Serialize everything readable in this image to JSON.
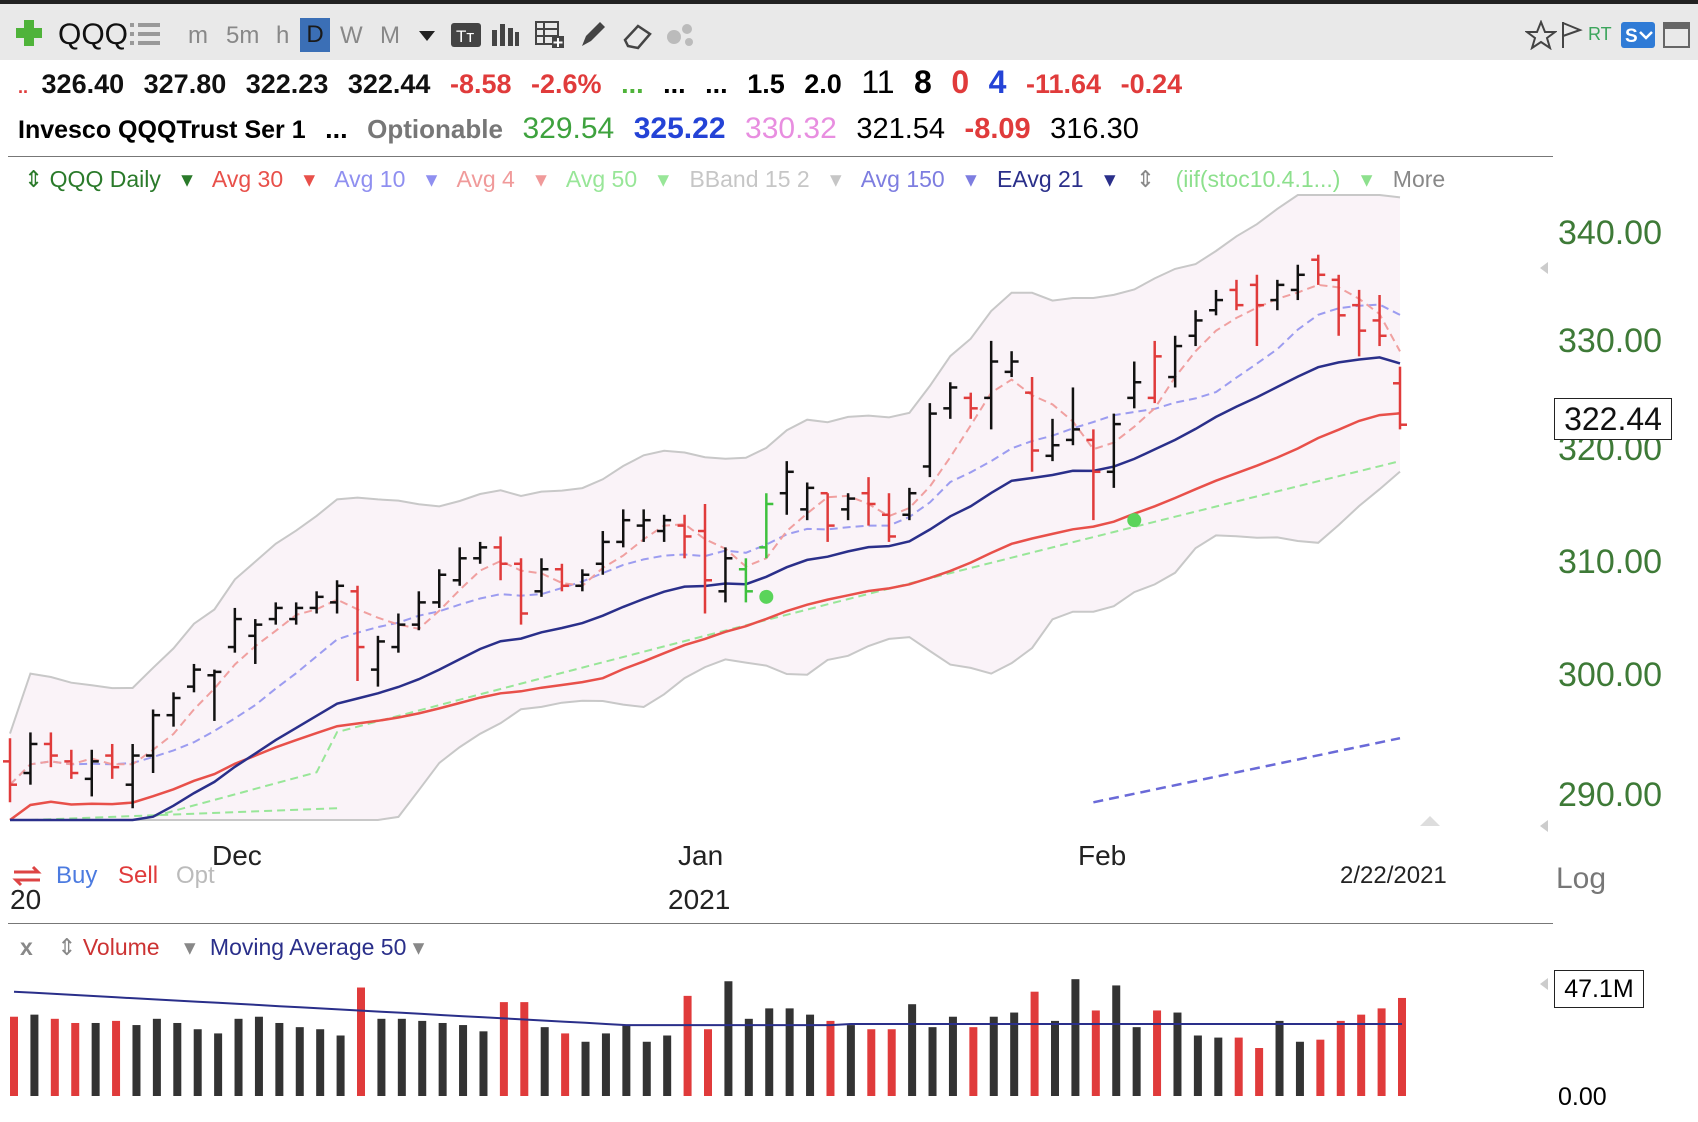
{
  "toolbar": {
    "symbol": "QQQ",
    "intervals": [
      "m",
      "5m",
      "h",
      "D",
      "W",
      "M"
    ],
    "active_interval": "D",
    "rt_label": "RT"
  },
  "quote": {
    "open": "326.40",
    "high": "327.80",
    "low": "322.23",
    "close": "322.44",
    "change": "-8.58",
    "change_pct": "-2.6%",
    "dots1": "...",
    "dots2": "...",
    "dots3": "...",
    "v1": "1.5",
    "v2": "2.0",
    "r1": "11",
    "r2": "8",
    "r3": "0",
    "r4": "4",
    "r5": "-11.64",
    "r6": "-0.24",
    "lead_dots": "..",
    "name": "Invesco QQQTrust Ser 1",
    "name_dots": "...",
    "optionable": "Optionable",
    "p1": "329.54",
    "p2": "325.22",
    "p3": "330.32",
    "p4": "321.54",
    "p5": "-8.09",
    "p6": "316.30"
  },
  "legend": {
    "series": "QQQ Daily",
    "avg30": "Avg 30",
    "avg10": "Avg 10",
    "avg4": "Avg 4",
    "avg50": "Avg 50",
    "bband": "BBand 15 2",
    "avg150": "Avg 150",
    "eavg21": "EAvg 21",
    "iif": "(iif(stoc10.4.1...)",
    "more": "More"
  },
  "axis": {
    "y_labels": [
      "340.00",
      "330.00",
      "320.00",
      "310.00",
      "300.00",
      "290.00"
    ],
    "last_price": "322.44",
    "x_labels": [
      "Dec",
      "Jan",
      "Feb"
    ],
    "year": "2021",
    "date": "2/22/2021",
    "log": "Log",
    "buy": "Buy",
    "sell": "Sell",
    "opt": "Opt",
    "left_fragment": "20"
  },
  "volume": {
    "close_x": "x",
    "label": "Volume",
    "ma_label": "Moving Average 50",
    "last": "47.1M",
    "zero": "0.00"
  },
  "colors": {
    "up": "#111111",
    "down": "#e03b3b",
    "green_bar": "#3ec13e",
    "avg30": "#e8504a",
    "eavg21": "#2a2f8a",
    "avg10": "#9c9cf0",
    "avg4": "#f0a0a0",
    "avg50": "#98e698",
    "avg150": "#6a6ad8",
    "band": "#c8c8c8",
    "axis_text": "#3e7a37"
  },
  "chart_data": {
    "type": "ohlc",
    "scale": "log",
    "ylim": [
      287,
      344
    ],
    "bars": [
      {
        "h": 294.0,
        "l": 288.5,
        "o": 292.0,
        "c": 290.0,
        "d": 1
      },
      {
        "h": 294.5,
        "l": 290.0,
        "o": 291.0,
        "c": 293.5,
        "d": 0
      },
      {
        "h": 294.5,
        "l": 291.5,
        "o": 293.5,
        "c": 292.5,
        "d": 1
      },
      {
        "h": 293.0,
        "l": 290.5,
        "o": 292.0,
        "c": 291.0,
        "d": 1
      },
      {
        "h": 293.0,
        "l": 289.0,
        "o": 290.5,
        "c": 292.0,
        "d": 0
      },
      {
        "h": 293.5,
        "l": 290.5,
        "o": 292.5,
        "c": 291.5,
        "d": 1
      },
      {
        "h": 293.5,
        "l": 288.0,
        "o": 290.0,
        "c": 292.5,
        "d": 0
      },
      {
        "h": 296.5,
        "l": 291.0,
        "o": 292.5,
        "c": 296.0,
        "d": 0
      },
      {
        "h": 298.0,
        "l": 295.0,
        "o": 296.0,
        "c": 297.5,
        "d": 0
      },
      {
        "h": 300.5,
        "l": 298.0,
        "o": 298.5,
        "c": 300.0,
        "d": 0
      },
      {
        "h": 300.0,
        "l": 295.5,
        "o": 299.5,
        "c": 299.8,
        "d": 0
      },
      {
        "h": 305.5,
        "l": 301.5,
        "o": 302.0,
        "c": 304.5,
        "d": 0
      },
      {
        "h": 304.5,
        "l": 300.5,
        "o": 303.0,
        "c": 304.0,
        "d": 0
      },
      {
        "h": 306.0,
        "l": 304.0,
        "o": 304.5,
        "c": 305.5,
        "d": 0
      },
      {
        "h": 306.0,
        "l": 304.0,
        "o": 304.5,
        "c": 305.5,
        "d": 0
      },
      {
        "h": 307.0,
        "l": 305.0,
        "o": 305.5,
        "c": 306.5,
        "d": 0
      },
      {
        "h": 308.0,
        "l": 305.0,
        "o": 306.0,
        "c": 307.5,
        "d": 0
      },
      {
        "h": 307.5,
        "l": 299.0,
        "o": 307.0,
        "c": 302.0,
        "d": 1
      },
      {
        "h": 303.0,
        "l": 298.5,
        "o": 300.0,
        "c": 302.5,
        "d": 0
      },
      {
        "h": 305.0,
        "l": 301.5,
        "o": 302.0,
        "c": 304.0,
        "d": 0
      },
      {
        "h": 307.0,
        "l": 303.5,
        "o": 304.0,
        "c": 306.0,
        "d": 0
      },
      {
        "h": 309.0,
        "l": 305.5,
        "o": 306.0,
        "c": 308.5,
        "d": 0
      },
      {
        "h": 311.0,
        "l": 307.5,
        "o": 308.0,
        "c": 310.0,
        "d": 0
      },
      {
        "h": 311.5,
        "l": 309.5,
        "o": 310.0,
        "c": 311.0,
        "d": 0
      },
      {
        "h": 312.0,
        "l": 308.0,
        "o": 311.0,
        "c": 309.5,
        "d": 1
      },
      {
        "h": 310.0,
        "l": 304.0,
        "o": 309.5,
        "c": 305.0,
        "d": 1
      },
      {
        "h": 310.0,
        "l": 306.5,
        "o": 307.0,
        "c": 309.0,
        "d": 0
      },
      {
        "h": 309.5,
        "l": 307.0,
        "o": 309.0,
        "c": 307.5,
        "d": 1
      },
      {
        "h": 309.0,
        "l": 307.0,
        "o": 307.5,
        "c": 308.5,
        "d": 0
      },
      {
        "h": 312.5,
        "l": 308.5,
        "o": 309.5,
        "c": 311.5,
        "d": 0
      },
      {
        "h": 314.5,
        "l": 311.0,
        "o": 311.5,
        "c": 313.5,
        "d": 0
      },
      {
        "h": 314.5,
        "l": 311.5,
        "o": 313.0,
        "c": 313.5,
        "d": 0
      },
      {
        "h": 314.0,
        "l": 311.5,
        "o": 312.5,
        "c": 313.5,
        "d": 0
      },
      {
        "h": 314.0,
        "l": 310.0,
        "o": 313.0,
        "c": 312.0,
        "d": 1
      },
      {
        "h": 315.0,
        "l": 305.0,
        "o": 312.5,
        "c": 308.0,
        "d": 1
      },
      {
        "h": 311.0,
        "l": 306.0,
        "o": 307.0,
        "c": 310.0,
        "d": 0
      },
      {
        "h": 310.0,
        "l": 306.0,
        "o": 309.0,
        "c": 307.0,
        "d": 2
      },
      {
        "h": 316.0,
        "l": 310.0,
        "o": 311.0,
        "c": 315.0,
        "d": 2
      },
      {
        "h": 319.0,
        "l": 314.0,
        "o": 316.0,
        "c": 318.0,
        "d": 0
      },
      {
        "h": 317.0,
        "l": 313.5,
        "o": 314.5,
        "c": 316.5,
        "d": 0
      },
      {
        "h": 316.0,
        "l": 311.5,
        "o": 316.0,
        "c": 313.0,
        "d": 1
      },
      {
        "h": 316.0,
        "l": 313.5,
        "o": 314.5,
        "c": 315.5,
        "d": 0
      },
      {
        "h": 317.5,
        "l": 313.0,
        "o": 316.0,
        "c": 315.0,
        "d": 1
      },
      {
        "h": 316.0,
        "l": 311.5,
        "o": 314.0,
        "c": 312.0,
        "d": 1
      },
      {
        "h": 316.5,
        "l": 313.5,
        "o": 314.0,
        "c": 316.0,
        "d": 0
      },
      {
        "h": 324.5,
        "l": 317.5,
        "o": 318.5,
        "c": 323.5,
        "d": 0
      },
      {
        "h": 326.5,
        "l": 323.0,
        "o": 324.0,
        "c": 326.0,
        "d": 0
      },
      {
        "h": 325.5,
        "l": 323.0,
        "o": 325.0,
        "c": 324.0,
        "d": 1
      },
      {
        "h": 330.5,
        "l": 322.0,
        "o": 325.0,
        "c": 328.5,
        "d": 0
      },
      {
        "h": 329.5,
        "l": 327.0,
        "o": 327.5,
        "c": 328.5,
        "d": 0
      },
      {
        "h": 327.0,
        "l": 318.0,
        "o": 325.5,
        "c": 320.0,
        "d": 1
      },
      {
        "h": 323.0,
        "l": 319.0,
        "o": 319.5,
        "c": 320.5,
        "d": 0
      },
      {
        "h": 326.0,
        "l": 320.5,
        "o": 321.0,
        "c": 322.0,
        "d": 0
      },
      {
        "h": 322.0,
        "l": 313.5,
        "o": 321.0,
        "c": 318.0,
        "d": 1
      },
      {
        "h": 323.5,
        "l": 316.5,
        "o": 318.0,
        "c": 322.5,
        "d": 0
      },
      {
        "h": 328.5,
        "l": 324.0,
        "o": 325.0,
        "c": 326.5,
        "d": 0
      },
      {
        "h": 330.5,
        "l": 324.5,
        "o": 325.0,
        "c": 329.0,
        "d": 1
      },
      {
        "h": 331.0,
        "l": 326.0,
        "o": 327.0,
        "c": 330.0,
        "d": 0
      },
      {
        "h": 333.5,
        "l": 330.0,
        "o": 331.0,
        "c": 332.5,
        "d": 0
      },
      {
        "h": 335.5,
        "l": 333.0,
        "o": 333.5,
        "c": 334.5,
        "d": 0
      },
      {
        "h": 336.5,
        "l": 333.5,
        "o": 335.5,
        "c": 334.0,
        "d": 1
      },
      {
        "h": 337.0,
        "l": 330.0,
        "o": 336.0,
        "c": 334.0,
        "d": 1
      },
      {
        "h": 336.5,
        "l": 333.5,
        "o": 334.5,
        "c": 336.0,
        "d": 0
      },
      {
        "h": 338.0,
        "l": 334.5,
        "o": 335.5,
        "c": 337.0,
        "d": 0
      },
      {
        "h": 339.0,
        "l": 336.0,
        "o": 338.5,
        "c": 337.0,
        "d": 1
      },
      {
        "h": 337.0,
        "l": 331.0,
        "o": 336.5,
        "c": 333.0,
        "d": 1
      },
      {
        "h": 335.5,
        "l": 329.0,
        "o": 334.0,
        "c": 331.5,
        "d": 1
      },
      {
        "h": 335.0,
        "l": 330.0,
        "o": 332.5,
        "c": 331.0,
        "d": 1
      },
      {
        "h": 328.0,
        "l": 322.0,
        "o": 326.4,
        "c": 322.44,
        "d": 1
      }
    ],
    "dots": [
      {
        "bar": 37,
        "price": 306.5
      },
      {
        "bar": 55,
        "price": 313.5
      }
    ],
    "volume_bars": [
      0.38,
      0.39,
      0.37,
      0.35,
      0.35,
      0.36,
      0.34,
      0.37,
      0.35,
      0.32,
      0.3,
      0.37,
      0.38,
      0.35,
      0.33,
      0.32,
      0.29,
      0.52,
      0.37,
      0.37,
      0.36,
      0.35,
      0.34,
      0.31,
      0.45,
      0.45,
      0.33,
      0.3,
      0.26,
      0.3,
      0.34,
      0.26,
      0.29,
      0.48,
      0.32,
      0.55,
      0.37,
      0.42,
      0.42,
      0.39,
      0.36,
      0.34,
      0.32,
      0.32,
      0.44,
      0.33,
      0.38,
      0.33,
      0.38,
      0.4,
      0.5,
      0.36,
      0.56,
      0.41,
      0.53,
      0.33,
      0.41,
      0.4,
      0.29,
      0.28,
      0.28,
      0.23,
      0.36,
      0.26,
      0.27,
      0.36,
      0.39,
      0.42,
      0.47
    ],
    "volume_max_label": "47.1M"
  }
}
